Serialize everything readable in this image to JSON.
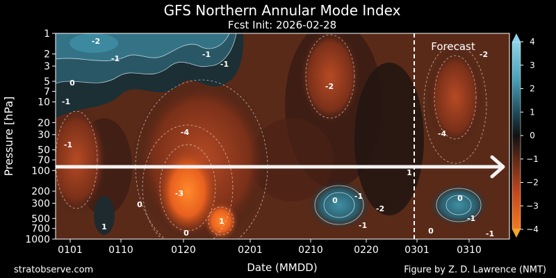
{
  "chart_data": {
    "type": "heatmap",
    "title": "GFS Northern Annular Mode Index",
    "subtitle": "Fcst Init: 2026-02-28",
    "xlabel": "Date (MMDD)",
    "ylabel": "Pressure [hPa]",
    "x_tick_labels": [
      "0101",
      "0110",
      "0120",
      "0201",
      "0210",
      "0220",
      "0301",
      "0310"
    ],
    "y_scale": "log",
    "y_tick_labels": [
      "1",
      "2",
      "3",
      "5",
      "7",
      "10",
      "20",
      "30",
      "50",
      "70",
      "100",
      "200",
      "300",
      "500",
      "700",
      "1000"
    ],
    "y_ticks": [
      1,
      2,
      3,
      5,
      7,
      10,
      20,
      30,
      50,
      70,
      100,
      200,
      300,
      500,
      700,
      1000
    ],
    "ylim": [
      1000,
      1
    ],
    "forecast_label": "Forecast",
    "colorbar": {
      "label_values": [
        4,
        3,
        2,
        1,
        0,
        -1,
        -2,
        -3,
        -4
      ],
      "tick_labels": [
        "4",
        "3",
        "2",
        "1",
        "0",
        "−1",
        "−2",
        "−3",
        "−4"
      ],
      "range": [
        -4,
        4
      ]
    },
    "contour_labels": [
      {
        "text": "-2"
      },
      {
        "text": "-1"
      },
      {
        "text": "0"
      },
      {
        "text": "-1"
      },
      {
        "text": "-1"
      },
      {
        "text": "-1"
      },
      {
        "text": "-2"
      },
      {
        "text": "-2"
      },
      {
        "text": "-4"
      },
      {
        "text": "-1"
      },
      {
        "text": "-4"
      },
      {
        "text": "-3"
      },
      {
        "text": "0"
      },
      {
        "text": "1"
      },
      {
        "text": "1"
      },
      {
        "text": "0"
      },
      {
        "text": "0"
      },
      {
        "text": "-1"
      },
      {
        "text": "-2"
      },
      {
        "text": "-1"
      },
      {
        "text": "1"
      },
      {
        "text": "0"
      },
      {
        "text": "-1"
      },
      {
        "text": "0"
      },
      {
        "text": "-1"
      }
    ]
  },
  "footer": {
    "left": "stratobserve.com",
    "right": "Figure by Z. D. Lawrence (NMT)"
  },
  "colors": {
    "strong_negative": "#f26b1f",
    "negative": "#a63d1e",
    "neutral": "#1a1a1a",
    "positive": "#2f6f80",
    "strong_positive": "#8fd3e8"
  }
}
